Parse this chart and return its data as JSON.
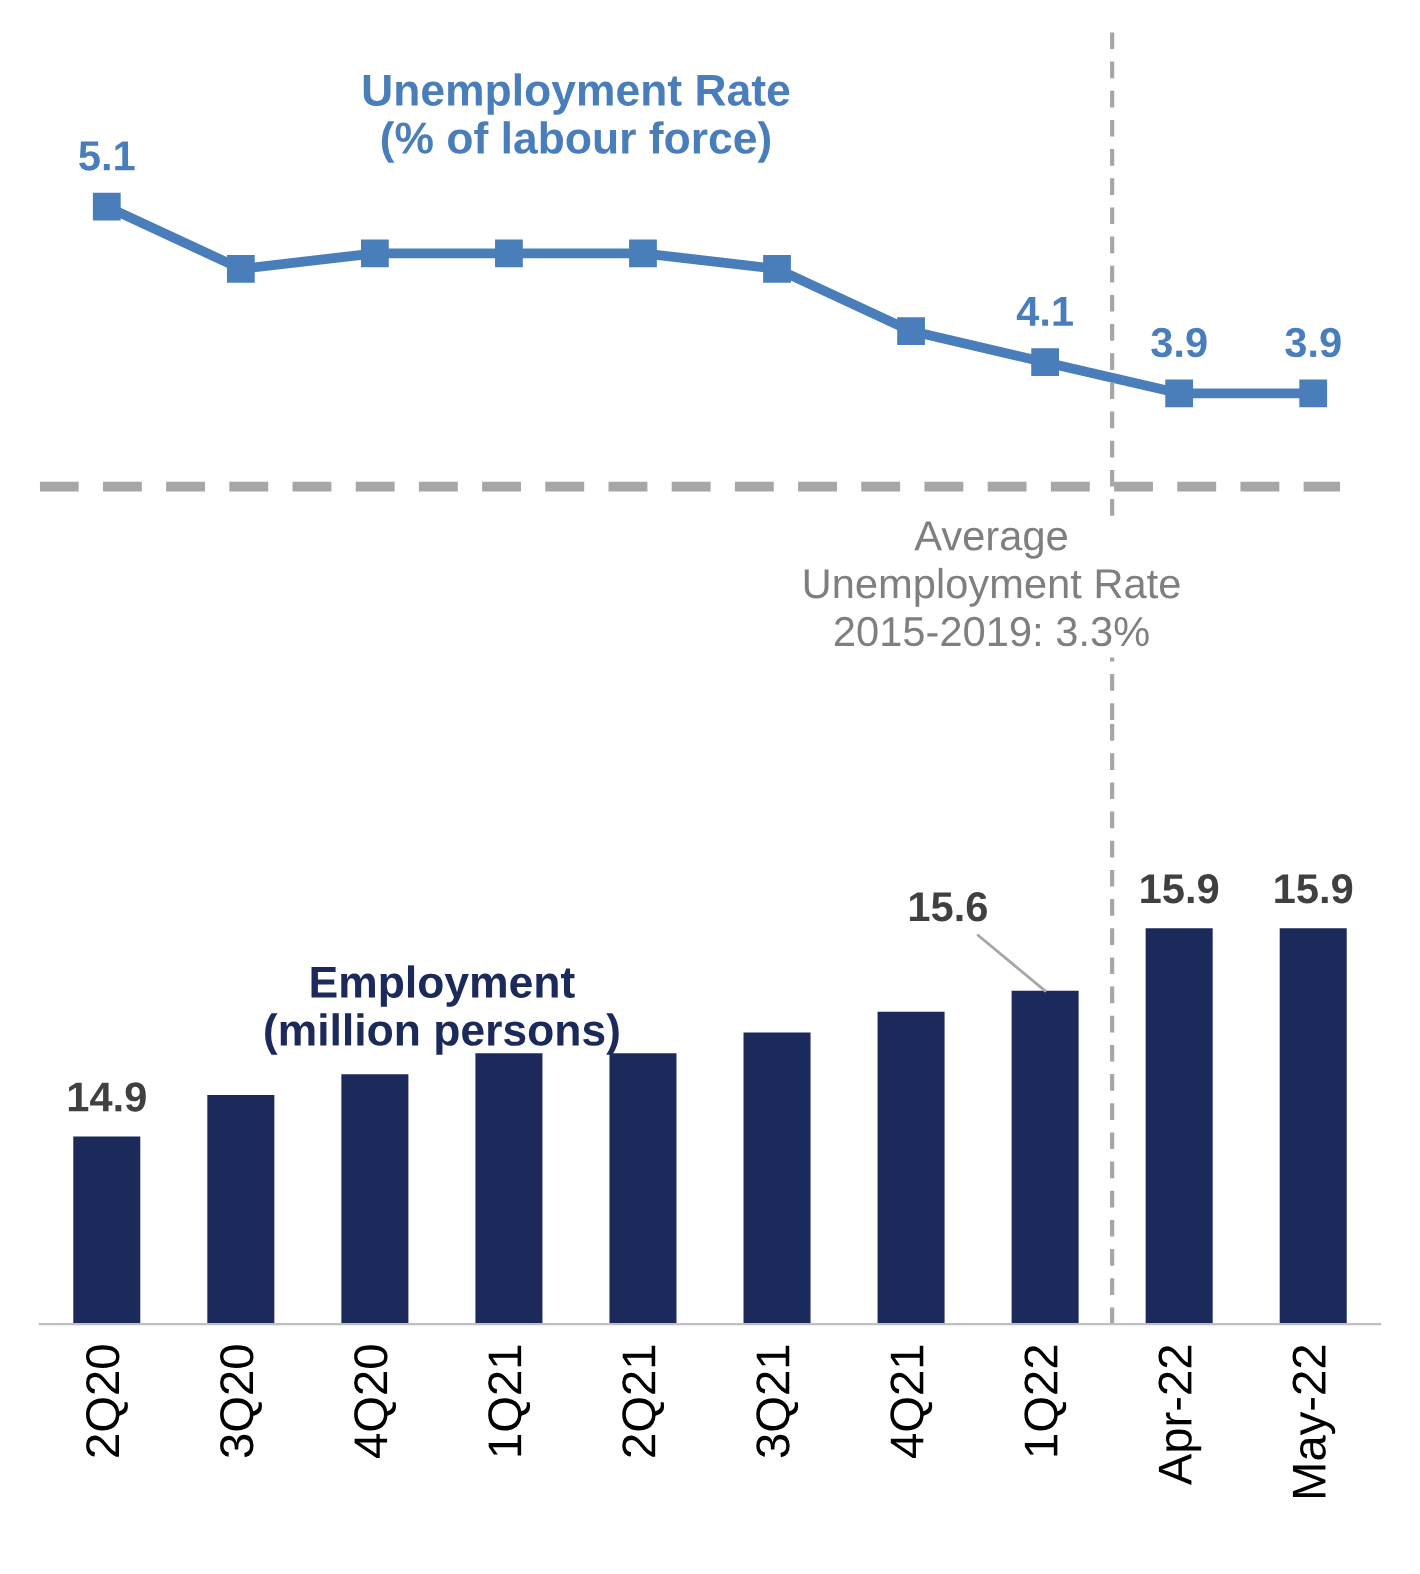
{
  "chart_data": [
    {
      "type": "line",
      "title": "Unemployment Rate\n(% of labour force)",
      "series": [
        {
          "color": "#4a7ebb",
          "values": [
            5.1,
            4.7,
            4.8,
            4.8,
            4.8,
            4.7,
            4.3,
            4.1,
            3.9,
            3.9
          ],
          "value_labels": [
            "5.1",
            null,
            null,
            null,
            null,
            null,
            null,
            "4.1",
            "3.9",
            "3.9"
          ]
        }
      ],
      "marker": "square",
      "line_style": "solid",
      "ylim": [
        1.8,
        6.3
      ],
      "tick_labels": false,
      "grid": false,
      "ref_lines": [
        {
          "axis": "y",
          "value": 3.3,
          "label": "Average\nUnemployment Rate\n2015-2019: 3.3%",
          "color": "#a6a6a6",
          "line_style": "dashed"
        }
      ]
    },
    {
      "type": "bar",
      "title": "Employment\n(million persons)",
      "categories": [
        "2Q20",
        "3Q20",
        "4Q20",
        "1Q21",
        "2Q21",
        "3Q21",
        "4Q21",
        "1Q22",
        "Apr-22",
        "May-22"
      ],
      "series": [
        {
          "color": "#1b2a5a",
          "values": [
            14.9,
            15.1,
            15.2,
            15.3,
            15.3,
            15.4,
            15.5,
            15.6,
            15.9,
            15.9
          ],
          "value_labels": [
            "14.9",
            null,
            null,
            null,
            null,
            null,
            null,
            "15.6",
            "15.9",
            "15.9"
          ]
        }
      ],
      "ylim": [
        14.0,
        16.9
      ],
      "tick_labels": "x",
      "grid": false
    }
  ]
}
